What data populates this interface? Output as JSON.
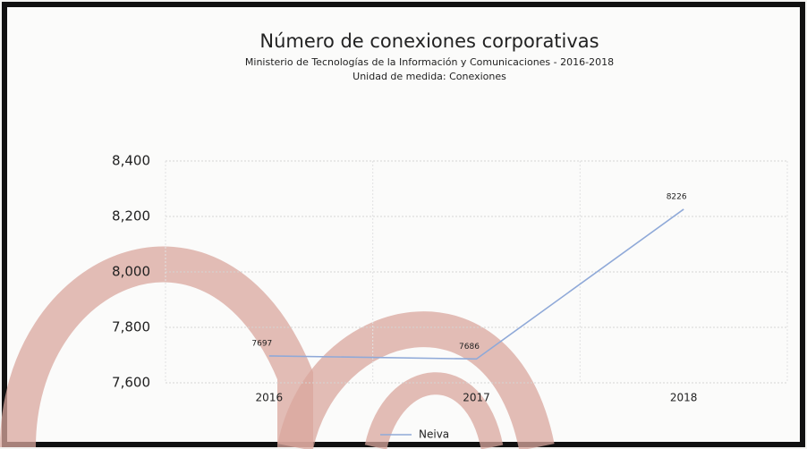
{
  "chart_data": {
    "type": "line",
    "title": "Número de conexiones corporativas",
    "subtitle": [
      "Ministerio de Tecnologías de la Información y Comunicaciones - 2016-2018",
      "Unidad de medida: Conexiones"
    ],
    "categories": [
      "2016",
      "2017",
      "2018"
    ],
    "series": [
      {
        "name": "Neiva",
        "color": "#8fa9d8",
        "values": [
          7697,
          7686,
          8226
        ]
      }
    ],
    "ylim": [
      7600,
      8400
    ],
    "yticks": [
      {
        "value": 7600,
        "label": "7,600"
      },
      {
        "value": 7800,
        "label": "7,800"
      },
      {
        "value": 8000,
        "label": "8,000"
      },
      {
        "value": 8200,
        "label": "8,200"
      },
      {
        "value": 8400,
        "label": "8,400"
      }
    ],
    "grid": true,
    "legend": "bottom"
  }
}
